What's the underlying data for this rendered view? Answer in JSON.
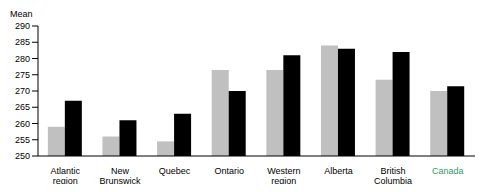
{
  "chart_data": {
    "type": "bar",
    "y_label": "Mean",
    "categories": [
      "Atlantic region",
      "New Brunswick",
      "Quebec",
      "Ontario",
      "Western region",
      "Alberta",
      "British Columbia",
      "Canada"
    ],
    "series": [
      {
        "color": "#c0c0c0",
        "values": [
          259,
          256,
          254.5,
          276.5,
          276.5,
          284,
          273.5,
          270
        ]
      },
      {
        "color": "#000000",
        "values": [
          267,
          261,
          263,
          270,
          281,
          283,
          282,
          271.5
        ]
      }
    ],
    "ylim": [
      250,
      290
    ],
    "yticks": [
      250,
      255,
      260,
      265,
      270,
      275,
      280,
      285,
      290
    ],
    "grid": false
  }
}
